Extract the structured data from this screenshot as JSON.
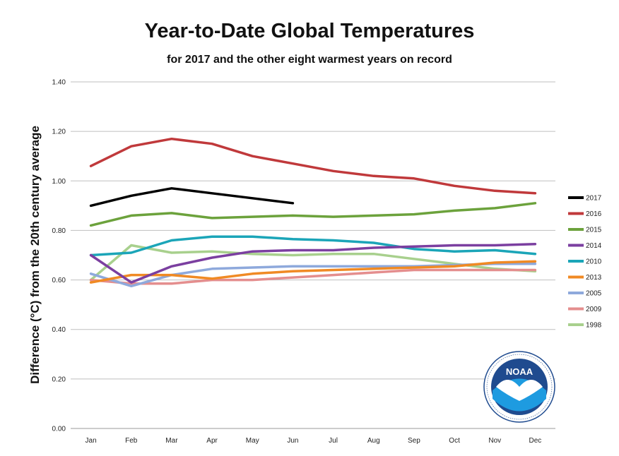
{
  "chart_data": {
    "type": "line",
    "title": "Year-to-Date Global Temperatures",
    "subtitle": "for 2017 and the other eight warmest years on record",
    "xlabel": "",
    "ylabel": "Difference (°C) from the 20th century average",
    "categories": [
      "Jan",
      "Feb",
      "Mar",
      "Apr",
      "May",
      "Jun",
      "Jul",
      "Aug",
      "Sep",
      "Oct",
      "Nov",
      "Dec"
    ],
    "ylim": [
      0,
      1.4
    ],
    "yticks": [
      "0.00",
      "0.20",
      "0.40",
      "0.60",
      "0.80",
      "1.00",
      "1.20",
      "1.40"
    ],
    "grid": true,
    "legend_position": "right",
    "series": [
      {
        "name": "2017",
        "color": "#000000",
        "values": [
          0.9,
          0.94,
          0.97,
          0.95,
          0.93,
          0.91,
          null,
          null,
          null,
          null,
          null,
          null
        ]
      },
      {
        "name": "2016",
        "color": "#c0393b",
        "values": [
          1.06,
          1.14,
          1.17,
          1.15,
          1.1,
          1.07,
          1.04,
          1.02,
          1.01,
          0.98,
          0.96,
          0.95
        ]
      },
      {
        "name": "2015",
        "color": "#6ca23c",
        "values": [
          0.82,
          0.86,
          0.87,
          0.85,
          0.855,
          0.86,
          0.855,
          0.86,
          0.865,
          0.88,
          0.89,
          0.91
        ]
      },
      {
        "name": "2014",
        "color": "#7b3fa0",
        "values": [
          0.7,
          0.59,
          0.655,
          0.69,
          0.715,
          0.72,
          0.72,
          0.73,
          0.735,
          0.74,
          0.74,
          0.745
        ]
      },
      {
        "name": "2010",
        "color": "#1ba5b8",
        "values": [
          0.7,
          0.71,
          0.76,
          0.775,
          0.775,
          0.765,
          0.76,
          0.75,
          0.725,
          0.715,
          0.72,
          0.705
        ]
      },
      {
        "name": "2013",
        "color": "#f08a24",
        "values": [
          0.59,
          0.62,
          0.62,
          0.605,
          0.625,
          0.635,
          0.64,
          0.645,
          0.65,
          0.655,
          0.67,
          0.675
        ]
      },
      {
        "name": "2005",
        "color": "#8ea9dc",
        "values": [
          0.625,
          0.575,
          0.62,
          0.645,
          0.65,
          0.655,
          0.655,
          0.655,
          0.655,
          0.66,
          0.665,
          0.665
        ]
      },
      {
        "name": "2009",
        "color": "#e48e8e",
        "values": [
          0.6,
          0.585,
          0.585,
          0.6,
          0.6,
          0.61,
          0.62,
          0.63,
          0.64,
          0.64,
          0.64,
          0.64
        ]
      },
      {
        "name": "1998",
        "color": "#a8d08d",
        "values": [
          0.6,
          0.74,
          0.71,
          0.715,
          0.705,
          0.7,
          0.705,
          0.705,
          0.685,
          0.665,
          0.645,
          0.635
        ]
      }
    ]
  },
  "logo": {
    "name": "noaa-logo",
    "text": "NOAA"
  }
}
